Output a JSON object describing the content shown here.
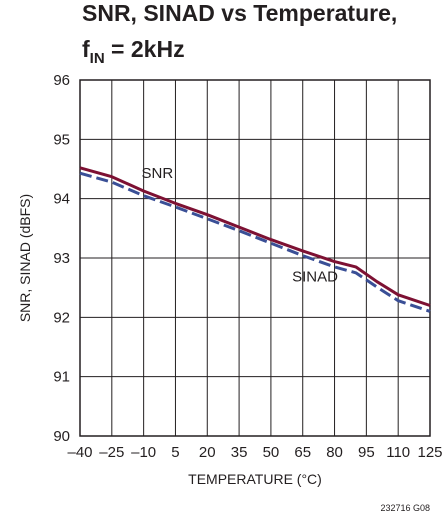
{
  "chart_data": {
    "type": "line",
    "title_line1": "SNR, SINAD vs Temperature,",
    "title_line2_main": "f",
    "title_line2_sub": "IN",
    "title_line2_rest": " = 2kHz",
    "xlabel": "TEMPERATURE (°C)",
    "ylabel": "SNR, SINAD (dBFS)",
    "xlim": [
      -40,
      125
    ],
    "ylim": [
      90,
      96
    ],
    "x_ticks": [
      "–40",
      "–25",
      "–10",
      "5",
      "20",
      "35",
      "50",
      "65",
      "80",
      "95",
      "110",
      "125"
    ],
    "x_tick_values": [
      -40,
      -25,
      -10,
      5,
      20,
      35,
      50,
      65,
      80,
      95,
      110,
      125
    ],
    "y_ticks": [
      "90",
      "91",
      "92",
      "93",
      "94",
      "95",
      "96"
    ],
    "y_tick_values": [
      90,
      91,
      92,
      93,
      94,
      95,
      96
    ],
    "grid": true,
    "series": [
      {
        "name": "SNR",
        "color": "#7d1133",
        "dash": "solid",
        "x": [
          -40,
          -25,
          -10,
          5,
          20,
          35,
          50,
          65,
          80,
          90,
          100,
          110,
          125
        ],
        "y": [
          94.52,
          94.37,
          94.13,
          93.92,
          93.73,
          93.52,
          93.31,
          93.12,
          92.94,
          92.85,
          92.6,
          92.38,
          92.2
        ]
      },
      {
        "name": "SINAD",
        "color": "#3a4f96",
        "dash": "dashed",
        "x": [
          -40,
          -25,
          -10,
          5,
          20,
          35,
          50,
          65,
          80,
          90,
          100,
          110,
          125
        ],
        "y": [
          94.43,
          94.28,
          94.05,
          93.86,
          93.66,
          93.46,
          93.25,
          93.04,
          92.85,
          92.75,
          92.51,
          92.28,
          92.1
        ]
      }
    ],
    "annotations": [
      {
        "text": "SNR",
        "x": -11,
        "y": 94.35
      },
      {
        "text": "SINAD",
        "x": 60,
        "y": 92.6
      }
    ],
    "figure_id": "232716 G08"
  }
}
